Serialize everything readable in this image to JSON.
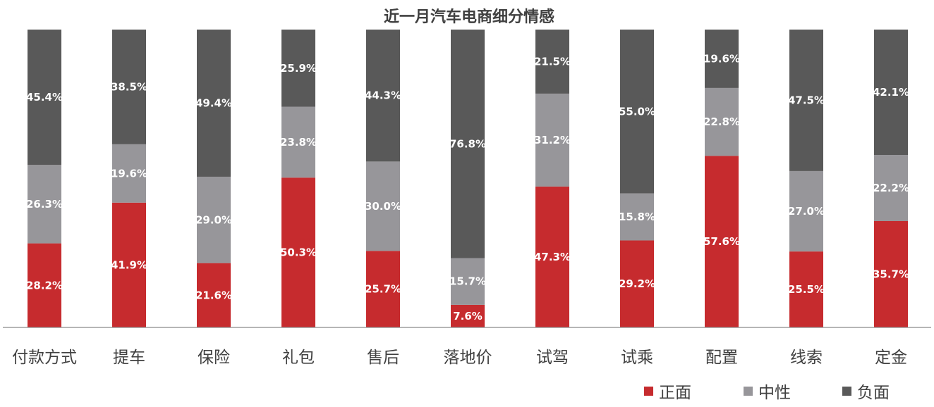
{
  "chart_data": {
    "type": "bar",
    "stacked": "percent",
    "title": "近一月汽车电商细分情感",
    "categories": [
      "付款方式",
      "提车",
      "保险",
      "礼包",
      "售后",
      "落地价",
      "试驾",
      "试乘",
      "配置",
      "线索",
      "定金"
    ],
    "series": [
      {
        "name": "正面",
        "color": "#C62B2E",
        "values": [
          28.2,
          41.9,
          21.6,
          50.3,
          25.7,
          7.6,
          47.3,
          29.2,
          57.6,
          25.5,
          35.7
        ]
      },
      {
        "name": "中性",
        "color": "#97969A",
        "values": [
          26.3,
          19.6,
          29.0,
          23.8,
          30.0,
          15.7,
          31.2,
          15.8,
          22.8,
          27.0,
          22.2
        ]
      },
      {
        "name": "负面",
        "color": "#595959",
        "values": [
          45.4,
          38.5,
          49.4,
          25.9,
          44.3,
          76.8,
          21.5,
          55.0,
          19.6,
          47.5,
          42.1
        ]
      }
    ],
    "labels": [
      [
        "28.2%",
        "41.9%",
        "21.6%",
        "50.3%",
        "25.7%",
        "7.6%",
        "47.3%",
        "29.2%",
        "57.6%",
        "25.5%",
        "35.7%"
      ],
      [
        "26.3%",
        "19.6%",
        "29.0%",
        "23.8%",
        "30.0%",
        "15.7%",
        "31.2%",
        "15.8%",
        "22.8%",
        "27.0%",
        "22.2%"
      ],
      [
        "45.4%",
        "38.5%",
        "49.4%",
        "25.9%",
        "44.3%",
        "76.8%",
        "21.5%",
        "55.0%",
        "19.6%",
        "47.5%",
        "42.1%"
      ]
    ],
    "ylim": [
      0,
      100
    ],
    "legend_position": "bottom-right",
    "grid": false
  }
}
